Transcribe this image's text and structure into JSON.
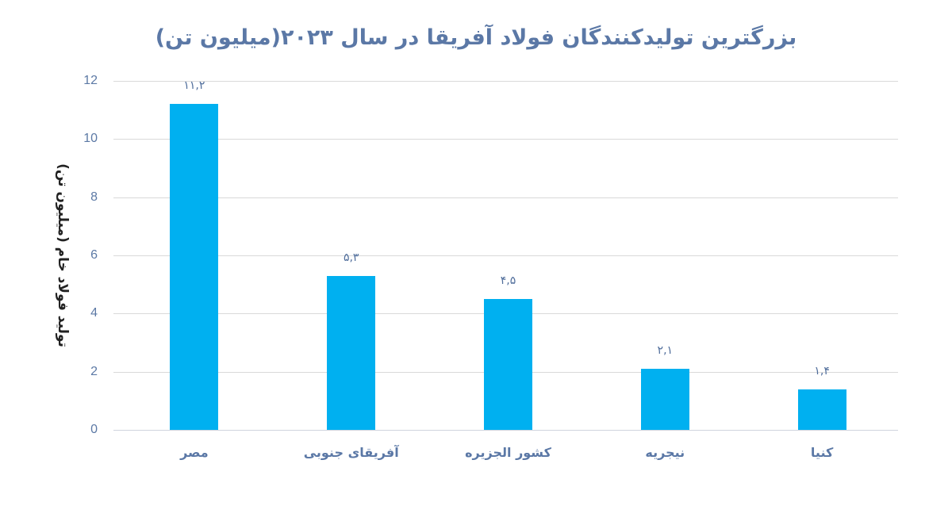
{
  "chart_data": {
    "type": "bar",
    "title": "بزرگترین تولیدکنندگان فولاد آفریقا در سال ۲۰۲۳(میلیون تن)",
    "xlabel": "",
    "ylabel": "تولید فولاد خام (میلیون تن)",
    "categories": [
      "مصر",
      "آفریقای جنوبی",
      "کشور الجزیره",
      "نیجریه",
      "کنیا"
    ],
    "values": [
      11.2,
      5.3,
      4.5,
      2.1,
      1.4
    ],
    "data_labels": [
      "۱۱,۲",
      "۵,۳",
      "۴,۵",
      "۲,۱",
      "۱,۴"
    ],
    "ylim": [
      0,
      12
    ],
    "yticks": [
      0,
      2,
      4,
      6,
      8,
      10,
      12
    ],
    "ytick_labels": [
      "0",
      "2",
      "4",
      "6",
      "8",
      "10",
      "12"
    ],
    "grid": true,
    "legend": "none",
    "bar_color": "#00B0F0"
  },
  "colors": {
    "bar": "#00B0F0",
    "title": "#5B78A6",
    "tick": "#5C79A5",
    "gridline": "#D9D9D9"
  }
}
